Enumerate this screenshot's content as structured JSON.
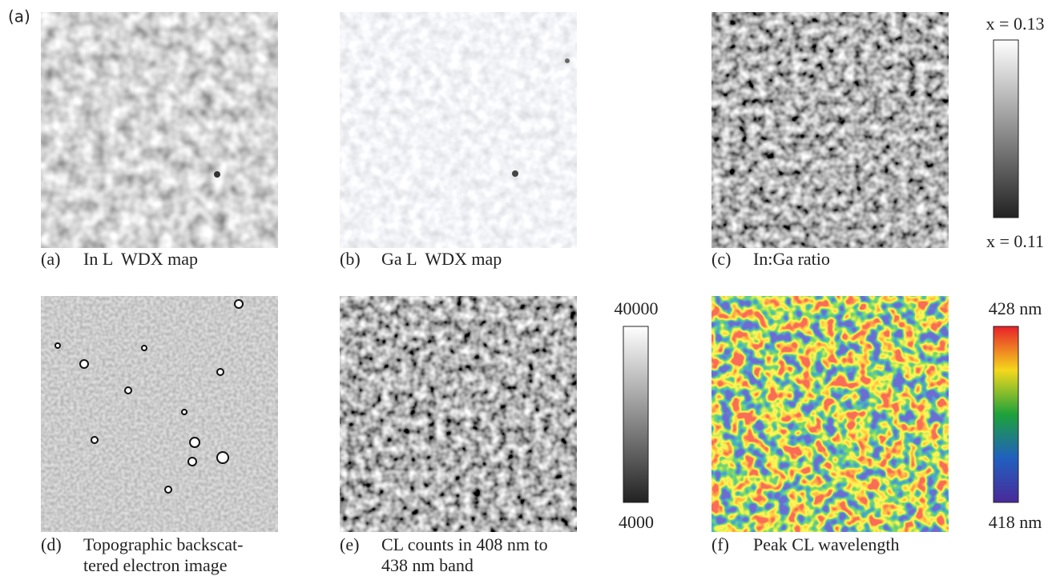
{
  "figure_label": "(a)",
  "panels": [
    {
      "label": "(a)",
      "caption": [
        "In L  WDX map"
      ]
    },
    {
      "label": "(b)",
      "caption": [
        "Ga L  WDX map"
      ]
    },
    {
      "label": "(c)",
      "caption": [
        "In:Ga ratio"
      ]
    },
    {
      "label": "(d)",
      "caption": [
        "Topographic backscat-",
        "tered electron image"
      ]
    },
    {
      "label": "(e)",
      "caption": [
        "CL counts in 408 nm to",
        "438 nm band"
      ]
    },
    {
      "label": "(f)",
      "caption": [
        "Peak CL wavelength"
      ]
    }
  ],
  "colorbars": [
    {
      "top": "x = 0.13",
      "bottom": "x = 0.11"
    },
    {
      "top": "40000",
      "bottom": "4000"
    },
    {
      "top": "428 nm",
      "bottom": "418 nm"
    }
  ]
}
